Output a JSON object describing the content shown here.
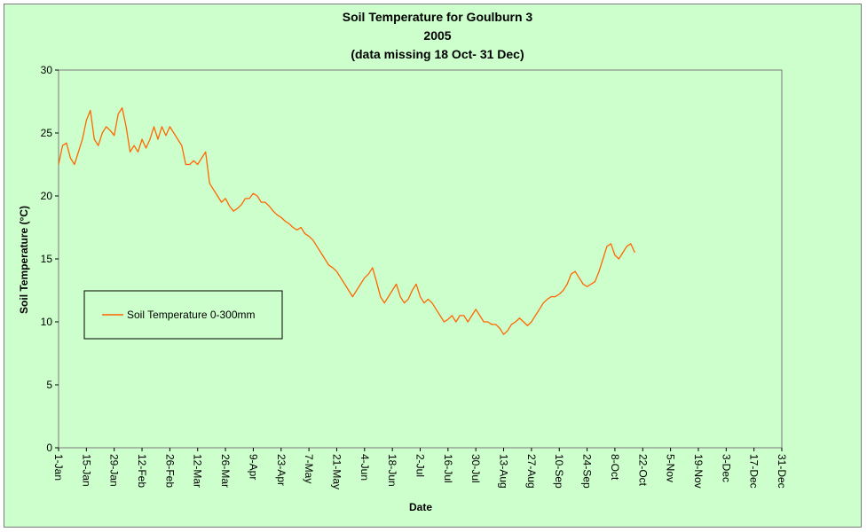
{
  "chart_data": {
    "type": "line",
    "title": "Soil Temperature for Goulburn 3",
    "subtitle": "2005",
    "note": "(data missing 18 Oct- 31 Dec)",
    "xlabel": "Date",
    "ylabel": "Soil Temperature (°C)",
    "ylim": [
      0,
      30
    ],
    "yticks": [
      0,
      5,
      10,
      15,
      20,
      25,
      30
    ],
    "xlim_day": [
      1,
      365
    ],
    "xticks": [
      {
        "label": "1-Jan",
        "day": 1
      },
      {
        "label": "15-Jan",
        "day": 15
      },
      {
        "label": "29-Jan",
        "day": 29
      },
      {
        "label": "12-Feb",
        "day": 43
      },
      {
        "label": "26-Feb",
        "day": 57
      },
      {
        "label": "12-Mar",
        "day": 71
      },
      {
        "label": "26-Mar",
        "day": 85
      },
      {
        "label": "9-Apr",
        "day": 99
      },
      {
        "label": "23-Apr",
        "day": 113
      },
      {
        "label": "7-May",
        "day": 127
      },
      {
        "label": "21-May",
        "day": 141
      },
      {
        "label": "4-Jun",
        "day": 155
      },
      {
        "label": "18-Jun",
        "day": 169
      },
      {
        "label": "2-Jul",
        "day": 183
      },
      {
        "label": "16-Jul",
        "day": 197
      },
      {
        "label": "30-Jul",
        "day": 211
      },
      {
        "label": "13-Aug",
        "day": 225
      },
      {
        "label": "27-Aug",
        "day": 239
      },
      {
        "label": "10-Sep",
        "day": 253
      },
      {
        "label": "24-Sep",
        "day": 267
      },
      {
        "label": "8-Oct",
        "day": 281
      },
      {
        "label": "22-Oct",
        "day": 295
      },
      {
        "label": "5-Nov",
        "day": 309
      },
      {
        "label": "19-Nov",
        "day": 323
      },
      {
        "label": "3-Dec",
        "day": 337
      },
      {
        "label": "17-Dec",
        "day": 351
      },
      {
        "label": "31-Dec",
        "day": 365
      }
    ],
    "grid": false,
    "legend_position": "left",
    "series": [
      {
        "name": "Soil Temperature  0-300mm",
        "color": "#ff6600",
        "x_day": [
          1,
          3,
          5,
          7,
          9,
          11,
          13,
          15,
          17,
          19,
          21,
          23,
          25,
          27,
          29,
          31,
          33,
          35,
          37,
          39,
          41,
          43,
          45,
          47,
          49,
          51,
          53,
          55,
          57,
          59,
          61,
          63,
          65,
          67,
          69,
          71,
          73,
          75,
          77,
          79,
          81,
          83,
          85,
          87,
          89,
          91,
          93,
          95,
          97,
          99,
          101,
          103,
          105,
          107,
          109,
          111,
          113,
          115,
          117,
          119,
          121,
          123,
          125,
          127,
          129,
          131,
          133,
          135,
          137,
          139,
          141,
          143,
          145,
          147,
          149,
          151,
          153,
          155,
          157,
          159,
          161,
          163,
          165,
          167,
          169,
          171,
          173,
          175,
          177,
          179,
          181,
          183,
          185,
          187,
          189,
          191,
          193,
          195,
          197,
          199,
          201,
          203,
          205,
          207,
          209,
          211,
          213,
          215,
          217,
          219,
          221,
          223,
          225,
          227,
          229,
          231,
          233,
          235,
          237,
          239,
          241,
          243,
          245,
          247,
          249,
          251,
          253,
          255,
          257,
          259,
          261,
          263,
          265,
          267,
          269,
          271,
          273,
          275,
          277,
          279,
          281,
          283,
          285,
          287,
          289,
          291
        ],
        "values": [
          22.5,
          24.0,
          24.2,
          23.0,
          22.5,
          23.5,
          24.5,
          26.0,
          26.8,
          24.5,
          24.0,
          25.0,
          25.5,
          25.2,
          24.8,
          26.5,
          27.0,
          25.5,
          23.5,
          24.0,
          23.5,
          24.5,
          23.8,
          24.5,
          25.5,
          24.5,
          25.5,
          24.8,
          25.5,
          25.0,
          24.5,
          24.0,
          22.5,
          22.5,
          22.8,
          22.5,
          23.0,
          23.5,
          21.0,
          20.5,
          20.0,
          19.5,
          19.8,
          19.2,
          18.8,
          19.0,
          19.3,
          19.8,
          19.8,
          20.2,
          20.0,
          19.5,
          19.5,
          19.2,
          18.8,
          18.5,
          18.3,
          18.0,
          17.8,
          17.5,
          17.3,
          17.5,
          17.0,
          16.8,
          16.5,
          16.0,
          15.5,
          15.0,
          14.5,
          14.3,
          14.0,
          13.5,
          13.0,
          12.5,
          12.0,
          12.5,
          13.0,
          13.5,
          13.8,
          14.3,
          13.2,
          12.0,
          11.5,
          12.0,
          12.5,
          13.0,
          12.0,
          11.5,
          11.8,
          12.5,
          13.0,
          12.0,
          11.5,
          11.8,
          11.5,
          11.0,
          10.5,
          10.0,
          10.2,
          10.5,
          10.0,
          10.5,
          10.5,
          10.0,
          10.5,
          11.0,
          10.5,
          10.0,
          10.0,
          9.8,
          9.8,
          9.5,
          9.0,
          9.3,
          9.8,
          10.0,
          10.3,
          10.0,
          9.7,
          10.0,
          10.5,
          11.0,
          11.5,
          11.8,
          12.0,
          12.0,
          12.2,
          12.5,
          13.0,
          13.8,
          14.0,
          13.5,
          13.0,
          12.8,
          13.0,
          13.2,
          14.0,
          15.0,
          16.0,
          16.2,
          15.3,
          15.0,
          15.5,
          16.0,
          16.2,
          15.5
        ]
      }
    ]
  }
}
